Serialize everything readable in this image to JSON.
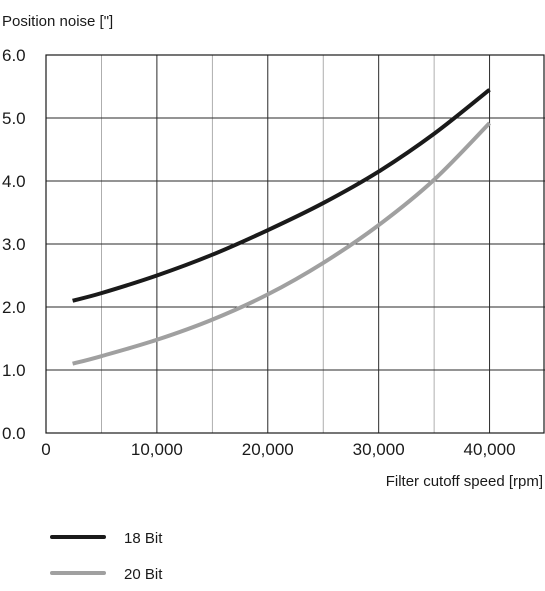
{
  "chart_data": {
    "type": "line",
    "title": "",
    "ylabel": "Position noise [\"]",
    "xlabel": "Filter cutoff speed [rpm]",
    "xlim": [
      0,
      45000
    ],
    "ylim": [
      0,
      6
    ],
    "x_ticks": [
      {
        "value": 0,
        "label": "0"
      },
      {
        "value": 10000,
        "label": "10,000"
      },
      {
        "value": 20000,
        "label": "20,000"
      },
      {
        "value": 30000,
        "label": "30,000"
      },
      {
        "value": 40000,
        "label": "40,000"
      }
    ],
    "y_ticks": [
      {
        "value": 0,
        "label": "0.0"
      },
      {
        "value": 1,
        "label": "1.0"
      },
      {
        "value": 2,
        "label": "2.0"
      },
      {
        "value": 3,
        "label": "3.0"
      },
      {
        "value": 4,
        "label": "4.0"
      },
      {
        "value": 5,
        "label": "5.0"
      },
      {
        "value": 6,
        "label": "6.0"
      }
    ],
    "grid": true,
    "legend_position": "bottom-left",
    "series": [
      {
        "name": "18 Bit",
        "color": "#1a1a1a",
        "x": [
          2400,
          5000,
          10000,
          15000,
          20000,
          25000,
          30000,
          35000,
          40000
        ],
        "y": [
          2.1,
          2.22,
          2.5,
          2.83,
          3.22,
          3.65,
          4.15,
          4.75,
          5.45
        ]
      },
      {
        "name": "20 Bit",
        "color": "#a0a0a0",
        "x": [
          2400,
          5000,
          10000,
          15000,
          20000,
          25000,
          30000,
          35000,
          40000
        ],
        "y": [
          1.1,
          1.22,
          1.48,
          1.8,
          2.2,
          2.7,
          3.3,
          4.02,
          4.92
        ]
      }
    ]
  }
}
